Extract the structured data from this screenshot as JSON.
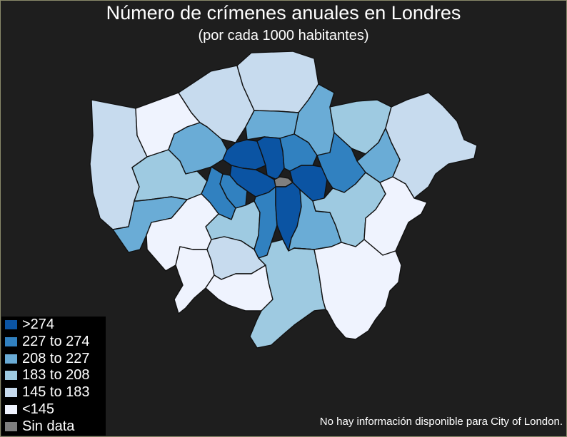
{
  "title": "Número de crímenes anuales en Londres",
  "subtitle": "(por cada 1000 habitantes)",
  "note": "No hay información disponible para City of London.",
  "legend": [
    {
      "label": ">274",
      "color": "#0b54a3"
    },
    {
      "label": "227 to 274",
      "color": "#3181c0"
    },
    {
      "label": "208 to 227",
      "color": "#6aacd6"
    },
    {
      "label": "183 to 208",
      "color": "#9ecae1"
    },
    {
      "label": "145 to 183",
      "color": "#c7dbee"
    },
    {
      "label": "<145",
      "color": "#eff3fe"
    },
    {
      "label": "Sin data",
      "color": "#7f7f7f"
    }
  ],
  "classes": {
    "c274": "#0b54a3",
    "c227": "#3181c0",
    "c208": "#6aacd6",
    "c183": "#9ecae1",
    "c145": "#c7dbee",
    "clow": "#eff3fe",
    "nodata": "#7f7f7f"
  }
}
